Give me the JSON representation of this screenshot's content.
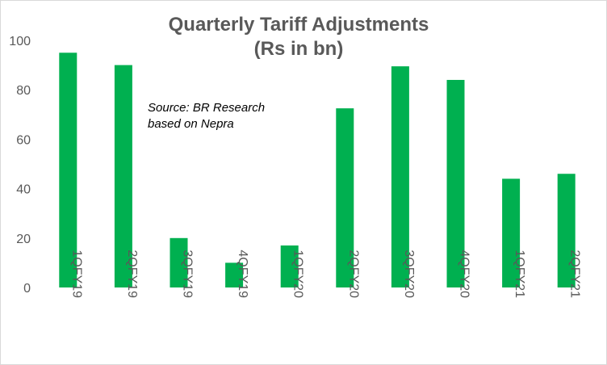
{
  "chart_data": {
    "type": "bar",
    "title": "Quarterly Tariff Adjustments",
    "subtitle": "(Rs in bn)",
    "annotation": "Source: BR Research\nbased on Nepra",
    "categories": [
      "1QFY19",
      "2QFY19",
      "3QFY19",
      "4QFY19",
      "1QFY20",
      "2QFY20",
      "3QFY20",
      "4QFY20",
      "1QFY21",
      "2QFY21"
    ],
    "values": [
      95,
      90,
      20,
      10,
      17,
      72.5,
      89.5,
      84,
      44,
      46
    ],
    "ylim": [
      0,
      100
    ],
    "yticks": [
      "0",
      "20",
      "40",
      "60",
      "80",
      "100"
    ],
    "grid": false,
    "legend": "none",
    "bar_color": "#00b050",
    "text_color": "#595959"
  }
}
